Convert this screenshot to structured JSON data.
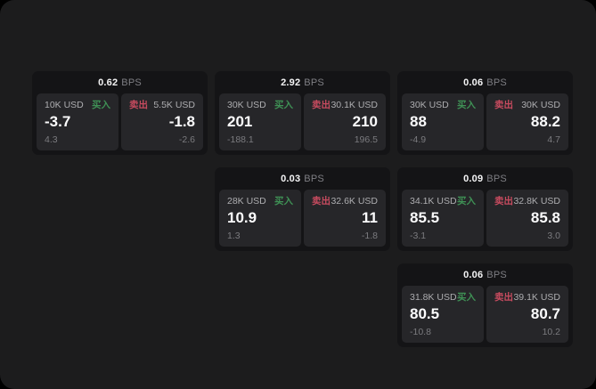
{
  "labels": {
    "bps_unit": "BPS",
    "buy": "买入",
    "sell": "卖出"
  },
  "colors": {
    "surface": "#1c1c1d",
    "card_background": "#141416",
    "panel_background": "#262629",
    "buy_accent": "#3f9155",
    "sell_accent": "#c74b5f"
  },
  "cards": [
    {
      "bps": "0.62",
      "buy": {
        "amount": "10K USD",
        "price": "-3.7",
        "delta": "4.3"
      },
      "sell": {
        "amount": "5.5K USD",
        "price": "-1.8",
        "delta": "-2.6"
      }
    },
    {
      "bps": "2.92",
      "buy": {
        "amount": "30K USD",
        "price": "201",
        "delta": "-188.1"
      },
      "sell": {
        "amount": "30.1K USD",
        "price": "210",
        "delta": "196.5"
      }
    },
    {
      "bps": "0.06",
      "buy": {
        "amount": "30K USD",
        "price": "88",
        "delta": "-4.9"
      },
      "sell": {
        "amount": "30K USD",
        "price": "88.2",
        "delta": "4.7"
      }
    },
    {
      "bps": "0.03",
      "buy": {
        "amount": "28K USD",
        "price": "10.9",
        "delta": "1.3"
      },
      "sell": {
        "amount": "32.6K USD",
        "price": "11",
        "delta": "-1.8"
      }
    },
    {
      "bps": "0.09",
      "buy": {
        "amount": "34.1K USD",
        "price": "85.5",
        "delta": "-3.1"
      },
      "sell": {
        "amount": "32.8K USD",
        "price": "85.8",
        "delta": "3.0"
      }
    },
    {
      "bps": "0.06",
      "buy": {
        "amount": "31.8K USD",
        "price": "80.5",
        "delta": "-10.8"
      },
      "sell": {
        "amount": "39.1K USD",
        "price": "80.7",
        "delta": "10.2"
      }
    }
  ]
}
